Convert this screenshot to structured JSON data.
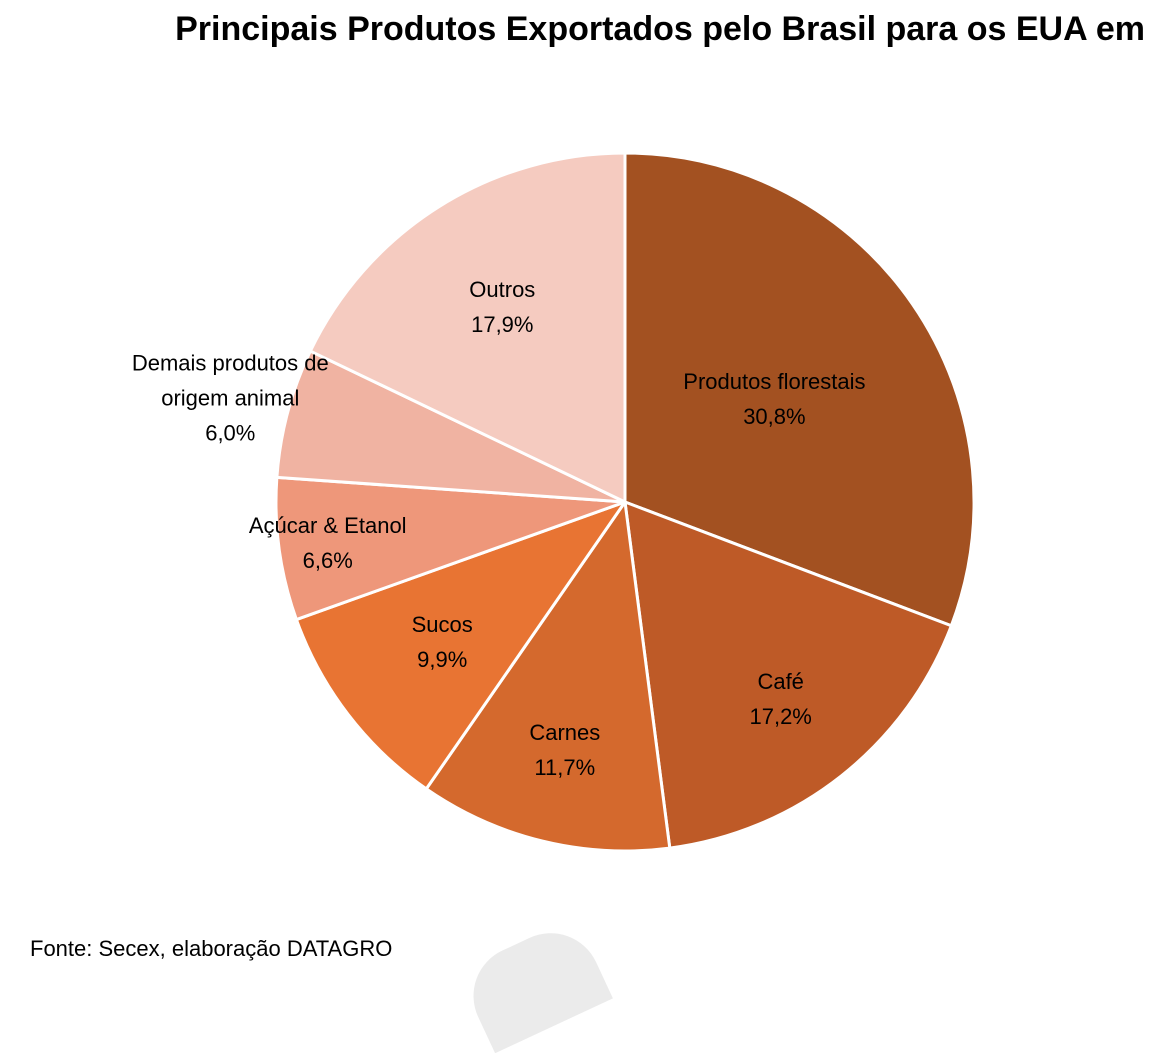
{
  "chart_data": {
    "type": "pie",
    "title": "Principais Produtos Exportados pelo Brasil para os EUA em",
    "start_angle_deg": 0,
    "direction": "clockwise",
    "slices": [
      {
        "label": "Produtos florestais",
        "value": 30.8,
        "value_label": "30,8%",
        "color": "#A35121"
      },
      {
        "label": "Café",
        "value": 17.2,
        "value_label": "17,2%",
        "color": "#BE5A27"
      },
      {
        "label": "Carnes",
        "value": 11.7,
        "value_label": "11,7%",
        "color": "#D4692D"
      },
      {
        "label": "Sucos",
        "value": 9.9,
        "value_label": "9,9%",
        "color": "#E87433"
      },
      {
        "label": "Açúcar & Etanol",
        "value": 6.6,
        "value_label": "6,6%",
        "color": "#EE977A"
      },
      {
        "label": "Demais produtos de origem animal",
        "label_lines": [
          "Demais produtos de",
          "origem animal"
        ],
        "value": 6.0,
        "value_label": "6,0%",
        "color": "#F0B3A2"
      },
      {
        "label": "Outros",
        "value": 17.9,
        "value_label": "17,9%",
        "color": "#F5CBC0"
      }
    ],
    "slice_border_color": "#FFFFFF"
  },
  "footer": {
    "source": "Fonte: Secex, elaboração DATAGRO"
  }
}
